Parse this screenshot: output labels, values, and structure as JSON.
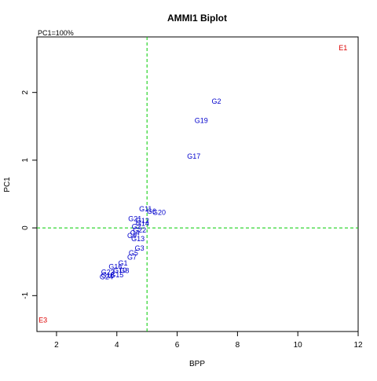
{
  "chart_data": {
    "type": "scatter",
    "title": "AMMI1 Biplot",
    "xlabel": "BPP",
    "ylabel": "PC1",
    "note": "PC1=100%",
    "xlim": [
      1.35,
      12.0
    ],
    "ylim": [
      -1.53,
      2.82
    ],
    "xticks": [
      2,
      4,
      6,
      8,
      10,
      12
    ],
    "yticks": [
      -1,
      0,
      1,
      2
    ],
    "reference_lines": {
      "x": 5.0,
      "y": 0
    },
    "colors": {
      "genotype": "#0000cc",
      "environment": "#dd0000",
      "reference": "#00cc00"
    },
    "genotypes": [
      {
        "label": "G2",
        "x": 7.3,
        "y": 1.86
      },
      {
        "label": "G19",
        "x": 6.8,
        "y": 1.58
      },
      {
        "label": "G17",
        "x": 6.55,
        "y": 1.05
      },
      {
        "label": "G20",
        "x": 5.4,
        "y": 0.22
      },
      {
        "label": "G11",
        "x": 4.95,
        "y": 0.27
      },
      {
        "label": "G6",
        "x": 5.15,
        "y": 0.24
      },
      {
        "label": "G21",
        "x": 4.6,
        "y": 0.13
      },
      {
        "label": "G12",
        "x": 4.85,
        "y": 0.1
      },
      {
        "label": "G14",
        "x": 4.85,
        "y": 0.06
      },
      {
        "label": "G2",
        "x": 4.65,
        "y": 0.01
      },
      {
        "label": "G22",
        "x": 4.75,
        "y": -0.04
      },
      {
        "label": "G4",
        "x": 4.6,
        "y": -0.08
      },
      {
        "label": "G9",
        "x": 4.5,
        "y": -0.12
      },
      {
        "label": "G13",
        "x": 4.7,
        "y": -0.17
      },
      {
        "label": "G3",
        "x": 4.75,
        "y": -0.31
      },
      {
        "label": "G5",
        "x": 4.55,
        "y": -0.38
      },
      {
        "label": "G7",
        "x": 4.5,
        "y": -0.44
      },
      {
        "label": "G1",
        "x": 4.2,
        "y": -0.53
      },
      {
        "label": "G16",
        "x": 3.95,
        "y": -0.58
      },
      {
        "label": "G10",
        "x": 4.1,
        "y": -0.63
      },
      {
        "label": "G8",
        "x": 4.25,
        "y": -0.64
      },
      {
        "label": "G23",
        "x": 3.7,
        "y": -0.66
      },
      {
        "label": "G18",
        "x": 3.7,
        "y": -0.71
      },
      {
        "label": "G15",
        "x": 4.0,
        "y": -0.7
      },
      {
        "label": "G24",
        "x": 3.65,
        "y": -0.73
      }
    ],
    "environments": [
      {
        "label": "E1",
        "x": 11.5,
        "y": 2.65
      },
      {
        "label": "E3",
        "x": 1.55,
        "y": -1.37
      }
    ]
  }
}
